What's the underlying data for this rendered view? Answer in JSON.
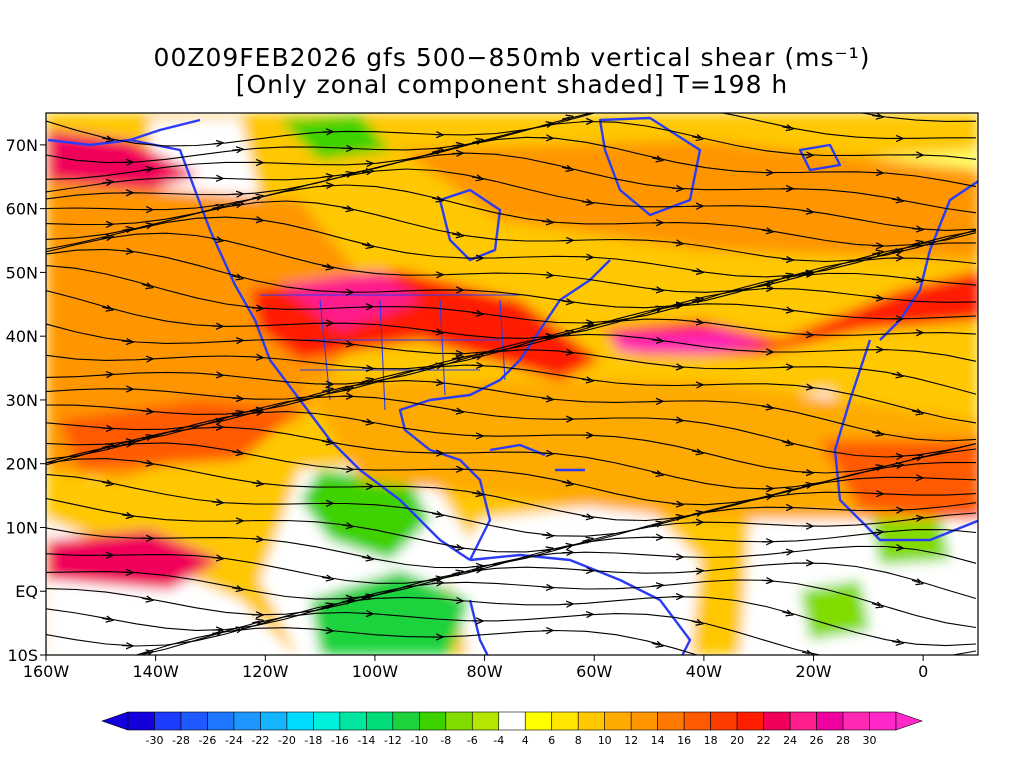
{
  "title": {
    "line1": "00Z09FEB2026 gfs 500−850mb vertical shear (ms⁻¹)",
    "line2": "[Only zonal component shaded] T=198 h"
  },
  "map": {
    "lon_range": [
      -160,
      10
    ],
    "lat_range": [
      -10,
      75
    ],
    "x_ticks": [
      "160W",
      "140W",
      "120W",
      "100W",
      "80W",
      "60W",
      "40W",
      "20W",
      "0"
    ],
    "x_tick_lons": [
      -160,
      -140,
      -120,
      -100,
      -80,
      -60,
      -40,
      -20,
      0
    ],
    "y_ticks": [
      "10S",
      "EQ",
      "10N",
      "20N",
      "30N",
      "40N",
      "50N",
      "60N",
      "70N"
    ],
    "y_tick_lats": [
      -10,
      0,
      10,
      20,
      30,
      40,
      50,
      60,
      70
    ],
    "coastline_color": "#2a3cf5",
    "streamline_color": "#000000"
  },
  "colorbar": {
    "labels": [
      "-30",
      "-28",
      "-26",
      "-24",
      "-22",
      "-20",
      "-18",
      "-16",
      "-14",
      "-12",
      "-10",
      "-8",
      "-6",
      "-4",
      "4",
      "6",
      "8",
      "10",
      "12",
      "14",
      "16",
      "18",
      "20",
      "22",
      "24",
      "26",
      "28",
      "30"
    ],
    "colors": [
      "#1400dc",
      "#1e3cff",
      "#1e5aff",
      "#1e78ff",
      "#1e96ff",
      "#14b4ff",
      "#00dcff",
      "#00f0dc",
      "#00e6a0",
      "#00dc78",
      "#1ed23c",
      "#3cd200",
      "#82dc00",
      "#b4e600",
      "#ffffff",
      "#ffff00",
      "#ffe600",
      "#ffc800",
      "#ffaa00",
      "#ff9600",
      "#ff7800",
      "#ff5a00",
      "#ff3c00",
      "#ff1e00",
      "#f0005a",
      "#ff1e8c",
      "#f000a0",
      "#ff28b4",
      "#ff28c8"
    ]
  }
}
